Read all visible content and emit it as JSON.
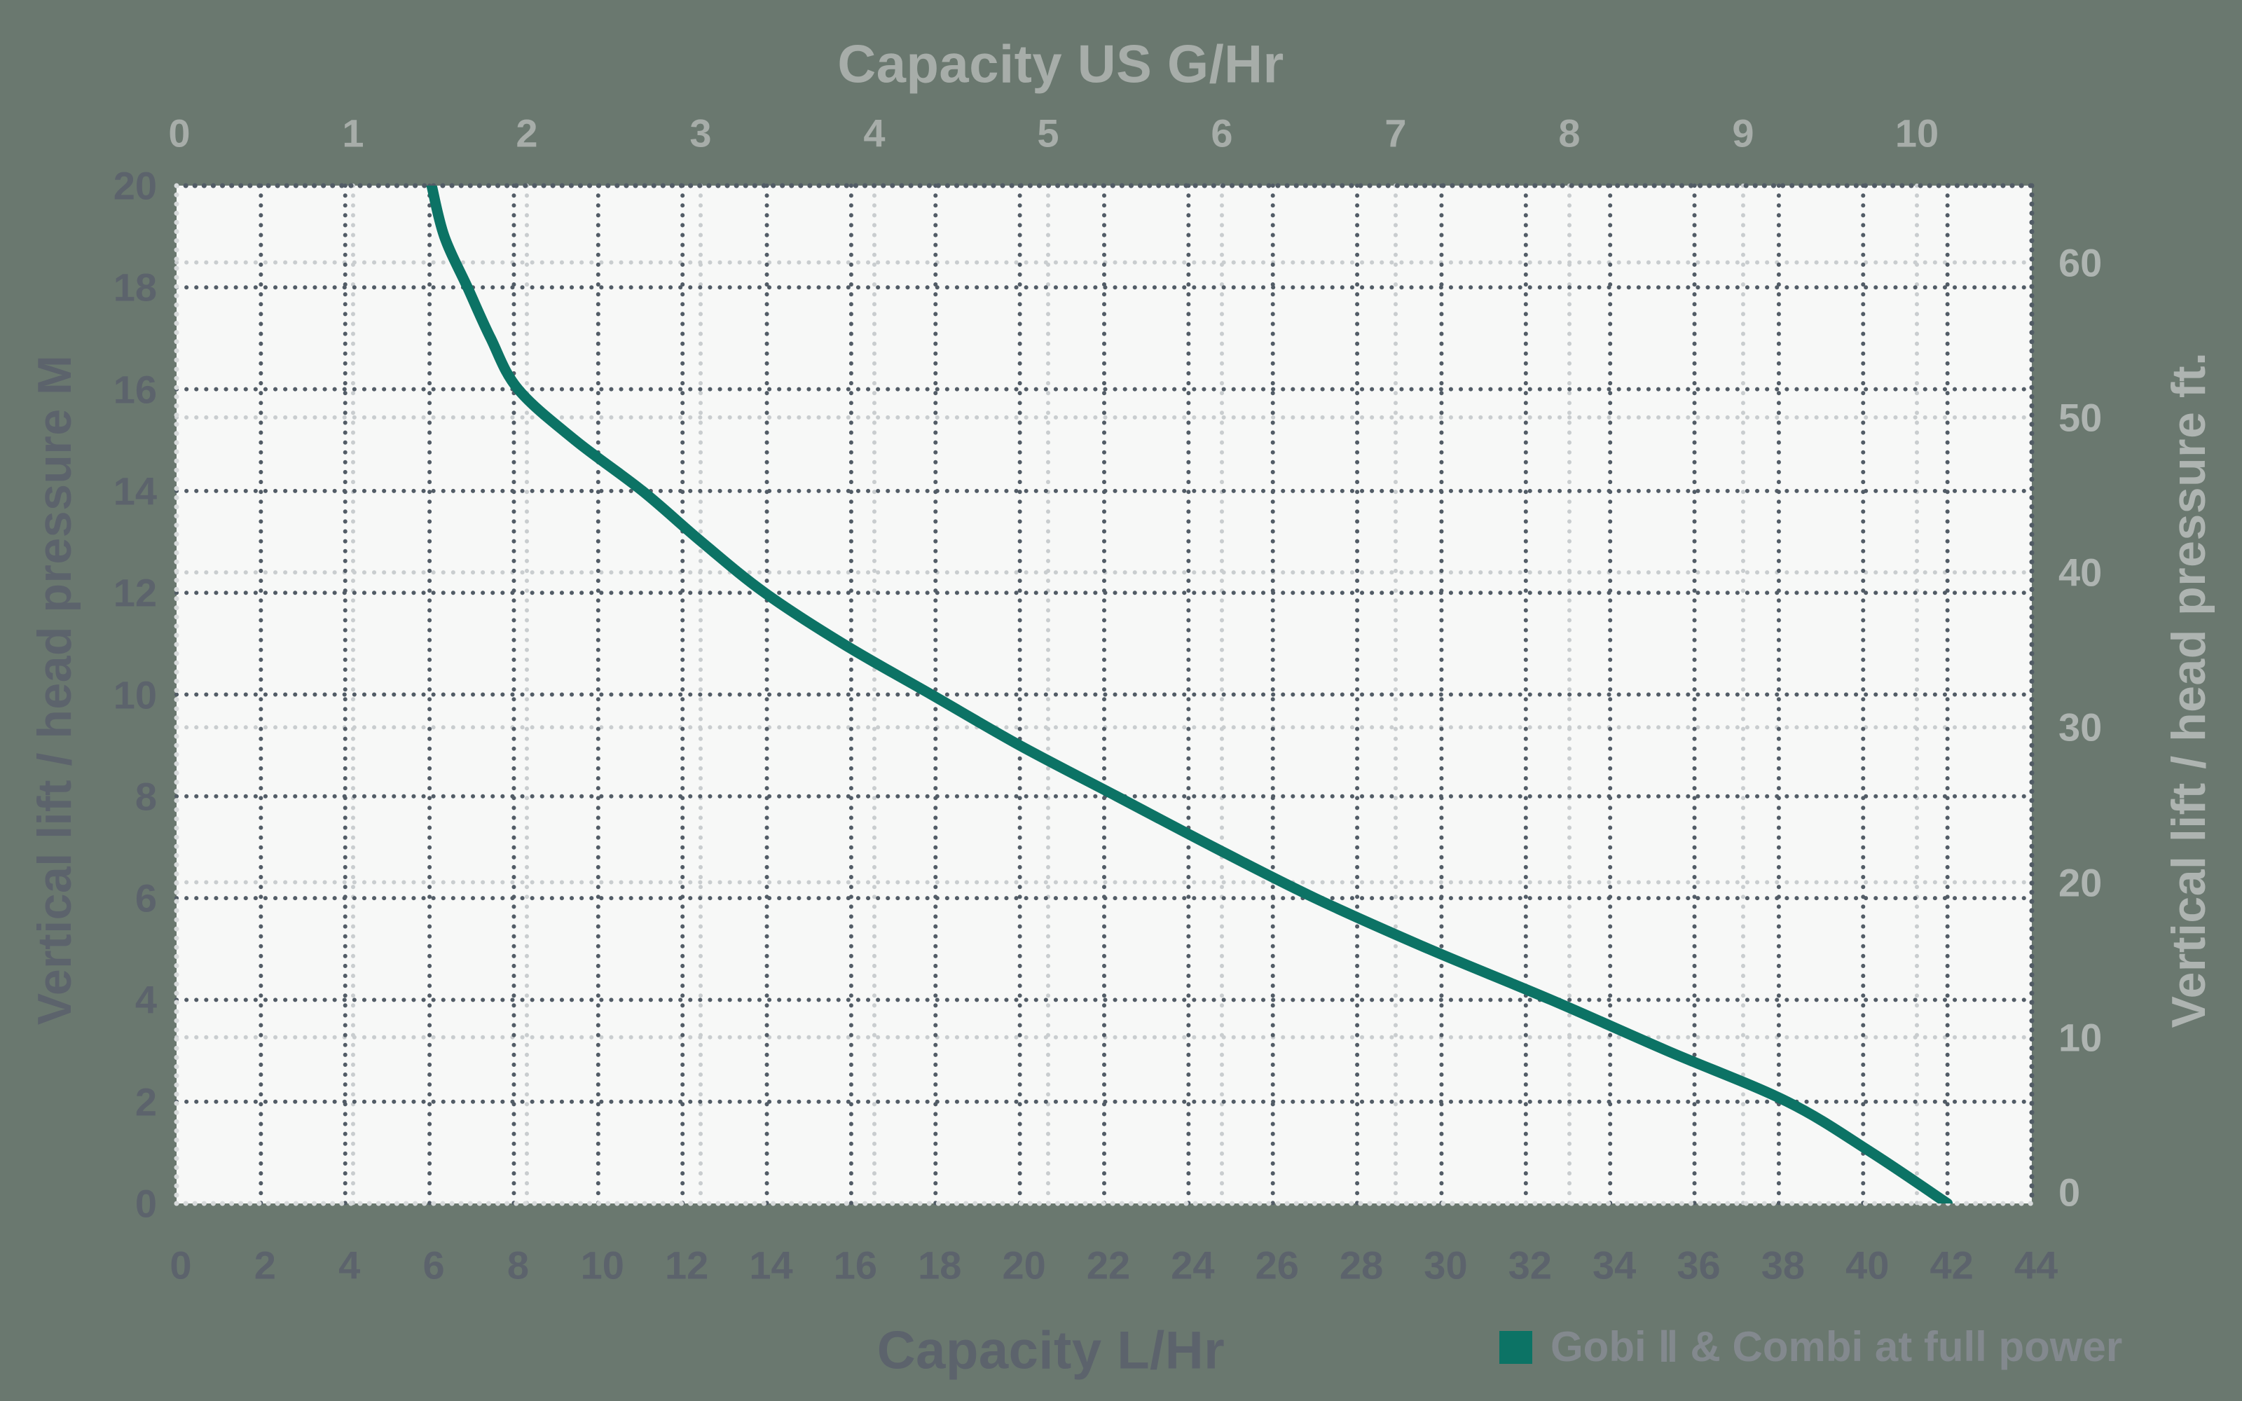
{
  "titles": {
    "top": "Capacity US G/Hr",
    "bottom": "Capacity L/Hr",
    "left": "Vertical lift / head pressure M",
    "right": "Vertical lift / head pressure ft."
  },
  "legend": {
    "label": "Gobi Ⅱ & Combi at full power",
    "swatch_color": "#0c7365"
  },
  "axes": {
    "top": {
      "ticks": [
        "0",
        "1",
        "2",
        "3",
        "4",
        "5",
        "6",
        "7",
        "8",
        "9",
        "10"
      ]
    },
    "bottom": {
      "ticks": [
        "0",
        "2",
        "4",
        "6",
        "8",
        "10",
        "12",
        "14",
        "16",
        "18",
        "20",
        "22",
        "24",
        "26",
        "28",
        "30",
        "32",
        "34",
        "36",
        "38",
        "40",
        "42",
        "44"
      ]
    },
    "left": {
      "ticks": [
        "20",
        "18",
        "16",
        "14",
        "12",
        "10",
        "8",
        "6",
        "4",
        "2",
        "0"
      ]
    },
    "right": {
      "ticks": [
        "60",
        "50",
        "40",
        "30",
        "20",
        "10",
        "0"
      ]
    }
  },
  "colors": {
    "background": "#6a786f",
    "plot_background": "#f7f8f7",
    "grid_dark": "#525c66",
    "grid_light": "#c9cdcf",
    "border_dark": "#525c66",
    "border_light": "#d7dadb",
    "curve": "#0c7365",
    "text_dark": "#5c636c",
    "text_light_top": "#a7ada9",
    "text_light_right": "#aeb4b1",
    "legend_text": "#83898e"
  },
  "chart_data": {
    "type": "line",
    "title": "",
    "x_axis_bottom": {
      "label": "Capacity L/Hr",
      "range": [
        0,
        44
      ],
      "tick_step": 2,
      "gridlines": "dark dotted every 2"
    },
    "x_axis_top": {
      "label": "Capacity US G/Hr",
      "range": [
        0,
        10.7
      ],
      "tick_step": 1,
      "gridlines": "light dotted every 1"
    },
    "y_axis_left": {
      "label": "Vertical lift / head pressure M",
      "range": [
        0,
        20
      ],
      "tick_step": 2,
      "gridlines": "dark dotted every 2"
    },
    "y_axis_right": {
      "label": "Vertical lift / head pressure ft.",
      "range": [
        -0.7,
        65
      ],
      "tick_step": 10,
      "gridlines": "light dotted every 10"
    },
    "grid": true,
    "legend_position": "bottom-right",
    "series": [
      {
        "name": "Gobi Ⅱ & Combi at full power",
        "color": "#0c7365",
        "units": [
          "capacity_L_per_hr",
          "lift_M"
        ],
        "points": [
          [
            6.05,
            20
          ],
          [
            6.35,
            19
          ],
          [
            6.9,
            18
          ],
          [
            7.45,
            17
          ],
          [
            8.1,
            16
          ],
          [
            9.45,
            15
          ],
          [
            11.05,
            14
          ],
          [
            12.45,
            13
          ],
          [
            13.95,
            12
          ],
          [
            15.8,
            11
          ],
          [
            17.9,
            10
          ],
          [
            20.0,
            9
          ],
          [
            22.3,
            8
          ],
          [
            24.6,
            7
          ],
          [
            27.0,
            6
          ],
          [
            29.7,
            5
          ],
          [
            32.6,
            4
          ],
          [
            35.35,
            3
          ],
          [
            38.2,
            2
          ],
          [
            40.2,
            1
          ],
          [
            42.0,
            0
          ]
        ]
      }
    ]
  }
}
